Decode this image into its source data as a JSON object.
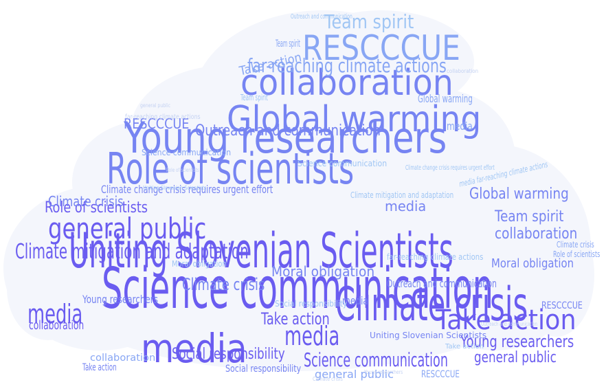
{
  "cloud_fill": "#f4f6fc",
  "palette": [
    "#6a5cf0",
    "#7684f2",
    "#88a6f4",
    "#a0c6f4",
    "#c4d2f2"
  ],
  "words": [
    {
      "id": "science-communication-main",
      "text": "Science communication",
      "tone": 0
    },
    {
      "id": "climate-crisis-main",
      "text": "Climate crisis",
      "tone": 0
    },
    {
      "id": "uniting-slovenian-scientists-main",
      "text": "Uniting Slovenian Scientists",
      "tone": 0
    },
    {
      "id": "role-of-scientists-main",
      "text": "Role of scientists",
      "tone": 1
    },
    {
      "id": "young-researchers-main",
      "text": "Young researchers",
      "tone": 1
    },
    {
      "id": "global-warming-main",
      "text": "Global warming",
      "tone": 1
    },
    {
      "id": "collaboration-main",
      "text": "collaboration",
      "tone": 1
    },
    {
      "id": "rescccue-main",
      "text": "RESCCCUE",
      "tone": 2
    },
    {
      "id": "far-reaching-main",
      "text": "far-reaching climate actions",
      "tone": 2
    },
    {
      "id": "team-spirit-main",
      "text": "Team spirit",
      "tone": 3
    },
    {
      "id": "media-main",
      "text": "media",
      "tone": 0
    },
    {
      "id": "take-action-main",
      "text": "Take action",
      "tone": 0
    },
    {
      "id": "general-public-main",
      "text": "general public",
      "tone": 0
    },
    {
      "id": "climate-mitigation-main",
      "text": "Climate mitigation and adaptation",
      "tone": 0
    },
    {
      "id": "outreach-main",
      "text": "Outreach and communication",
      "tone": 1
    },
    {
      "id": "climate-change-urgent-main",
      "text": "Climate change crisis requires urgent effort",
      "tone": 1
    },
    {
      "id": "moral-obligation-main",
      "text": "Moral obligation",
      "tone": 1
    },
    {
      "id": "social-responsibility-main",
      "text": "Social responsibility",
      "tone": 0
    },
    {
      "id": "young-researchers-right",
      "text": "Young researchers",
      "tone": 0
    },
    {
      "id": "science-communication-bottom",
      "text": "Science communication",
      "tone": 0
    },
    {
      "id": "media-bottom",
      "text": "media",
      "tone": 0
    },
    {
      "id": "media-left",
      "text": "media",
      "tone": 0
    },
    {
      "id": "take-action-right",
      "text": "Take action",
      "tone": 0
    },
    {
      "id": "role-of-scientists-left",
      "text": "Role of scientists",
      "tone": 0
    },
    {
      "id": "general-public-right",
      "text": "general public",
      "tone": 0
    },
    {
      "id": "collaboration-right",
      "text": "collaboration",
      "tone": 1
    },
    {
      "id": "team-spirit-right",
      "text": "Team spirit",
      "tone": 1
    },
    {
      "id": "global-warming-right",
      "text": "Global warming",
      "tone": 1
    },
    {
      "id": "climate-crisis-mid",
      "text": "Climate crisis",
      "tone": 1
    },
    {
      "id": "moral-obligation-right",
      "text": "Moral obligation",
      "tone": 1
    },
    {
      "id": "outreach-right",
      "text": "Outreach and communication",
      "tone": 1
    },
    {
      "id": "uniting-slovenian-bottom",
      "text": "Uniting Slovenian Scientists",
      "tone": 1
    },
    {
      "id": "collaboration-left",
      "text": "collaboration",
      "tone": 0
    },
    {
      "id": "climate-crisis-left",
      "text": "Climate crisis",
      "tone": 1
    },
    {
      "id": "young-researchers-left",
      "text": "Young researchers",
      "tone": 1
    },
    {
      "id": "rescccue-left",
      "text": "RESCCCUE",
      "tone": 1
    },
    {
      "id": "media-top",
      "text": "media",
      "tone": 1
    },
    {
      "id": "media-mid",
      "text": "media",
      "tone": 1
    },
    {
      "id": "take-action-left",
      "text": "Take action",
      "tone": 1
    },
    {
      "id": "social-responsibility-bottom",
      "text": "Social responsibility",
      "tone": 1
    },
    {
      "id": "general-public-bottom",
      "text": "general public",
      "tone": 2
    },
    {
      "id": "rescccue-bottom",
      "text": "RESCCCUE",
      "tone": 2
    },
    {
      "id": "take-action-top",
      "text": "Take action",
      "tone": 2
    },
    {
      "id": "team-spirit-top",
      "text": "Team spirit",
      "tone": 2
    },
    {
      "id": "science-communication-left",
      "text": "Science communication",
      "tone": 2
    },
    {
      "id": "global-warming-small",
      "text": "Global warming",
      "tone": 2
    },
    {
      "id": "climate-crisis-right",
      "text": "Climate crisis",
      "tone": 2
    },
    {
      "id": "rescccue-right",
      "text": "RESCCCUE",
      "tone": 1
    },
    {
      "id": "role-of-scientists-right",
      "text": "Role of scientists",
      "tone": 2
    },
    {
      "id": "media-right",
      "text": "media",
      "tone": 2
    },
    {
      "id": "collaboration-bottom",
      "text": "collaboration",
      "tone": 2
    },
    {
      "id": "science-communication-top",
      "text": "Science communication",
      "tone": 3
    },
    {
      "id": "climate-mitigation-small",
      "text": "Climate mitigation and adaptation",
      "tone": 3
    },
    {
      "id": "far-reaching-small",
      "text": "far-reaching climate actions",
      "tone": 3
    },
    {
      "id": "outreach-top",
      "text": "Outreach and communication",
      "tone": 3
    },
    {
      "id": "uniting-slovenian-small",
      "text": "Uniting Slovenian Scientists",
      "tone": 3
    },
    {
      "id": "moral-obligation-small",
      "text": "Moral obligation",
      "tone": 3
    },
    {
      "id": "social-responsibility-small",
      "text": "Social responsibility",
      "tone": 3
    },
    {
      "id": "climate-change-urgent-small",
      "text": "Climate change crisis requires urgent effort",
      "tone": 3
    },
    {
      "id": "team-spirit-left",
      "text": "Team spirit",
      "tone": 3
    },
    {
      "id": "take-action-bottom",
      "text": "Take action",
      "tone": 3
    },
    {
      "id": "general-public-top",
      "text": "general public",
      "tone": 4
    },
    {
      "id": "role-of-scientists-top",
      "text": "Role of scientists",
      "tone": 4
    },
    {
      "id": "young-researchers-bottom",
      "text": "Young researchers",
      "tone": 4
    },
    {
      "id": "climate-crisis-bottom",
      "text": "Climate crisis",
      "tone": 4
    },
    {
      "id": "collaboration-top",
      "text": "collaboration",
      "tone": 4
    },
    {
      "id": "outreach-bottom",
      "text": "Outreach and communication",
      "tone": 4
    },
    {
      "id": "far-reaching-bottom",
      "text": "far-reaching climate actions",
      "tone": 4
    },
    {
      "id": "media-far-reaching",
      "text": "media far-reaching climate actions",
      "tone": 3
    }
  ]
}
